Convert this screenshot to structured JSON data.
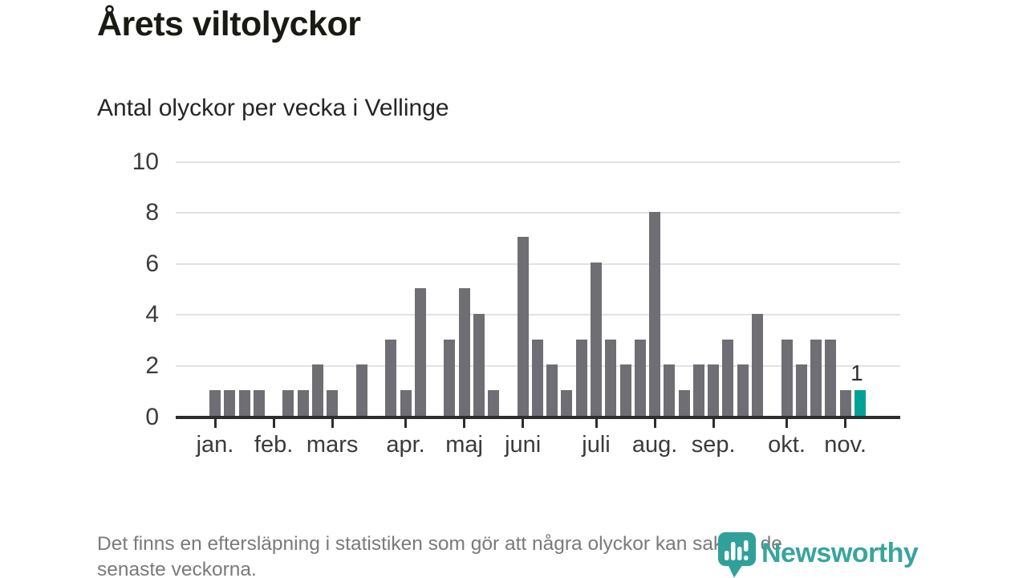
{
  "title": "Årets viltolyckor",
  "subtitle": "Antal olyckor per vecka i Vellinge",
  "footnote": {
    "line1": "Det finns en eftersläpning i statistiken som gör att några olyckor kan saknas de",
    "line2": "senaste veckorna."
  },
  "logo": {
    "name": "Newsworthy",
    "text_color": "#38a59d",
    "pin_color": "#2fa19a"
  },
  "chart_data": {
    "type": "bar",
    "title": "Årets viltolyckor",
    "subtitle": "Antal olyckor per vecka i Vellinge",
    "x_unit": "vecka",
    "weeks": 45,
    "values": [
      1,
      1,
      1,
      1,
      0,
      1,
      1,
      2,
      1,
      0,
      2,
      0,
      3,
      1,
      5,
      0,
      3,
      5,
      4,
      1,
      0,
      7,
      3,
      2,
      1,
      3,
      6,
      3,
      2,
      3,
      8,
      2,
      1,
      2,
      2,
      3,
      2,
      4,
      0,
      3,
      2,
      3,
      3,
      1,
      1
    ],
    "y_ticks": [
      0,
      2,
      4,
      6,
      8,
      10
    ],
    "ylim": [
      0,
      10
    ],
    "grid": true,
    "x_month_ticks": [
      {
        "label": "jan.",
        "week": 1
      },
      {
        "label": "feb.",
        "week": 5
      },
      {
        "label": "mars",
        "week": 9
      },
      {
        "label": "apr.",
        "week": 14
      },
      {
        "label": "maj",
        "week": 18
      },
      {
        "label": "juni",
        "week": 22
      },
      {
        "label": "juli",
        "week": 27
      },
      {
        "label": "aug.",
        "week": 31
      },
      {
        "label": "sep.",
        "week": 35
      },
      {
        "label": "okt.",
        "week": 40
      },
      {
        "label": "nov.",
        "week": 44
      }
    ],
    "highlight_last": true,
    "last_value_label": "1",
    "colors": {
      "bar": "#6e6e74",
      "highlight": "#00a296",
      "grid": "#e2e2e2",
      "axis": "#2d2d2f",
      "labels": "#3b3b3b"
    }
  }
}
